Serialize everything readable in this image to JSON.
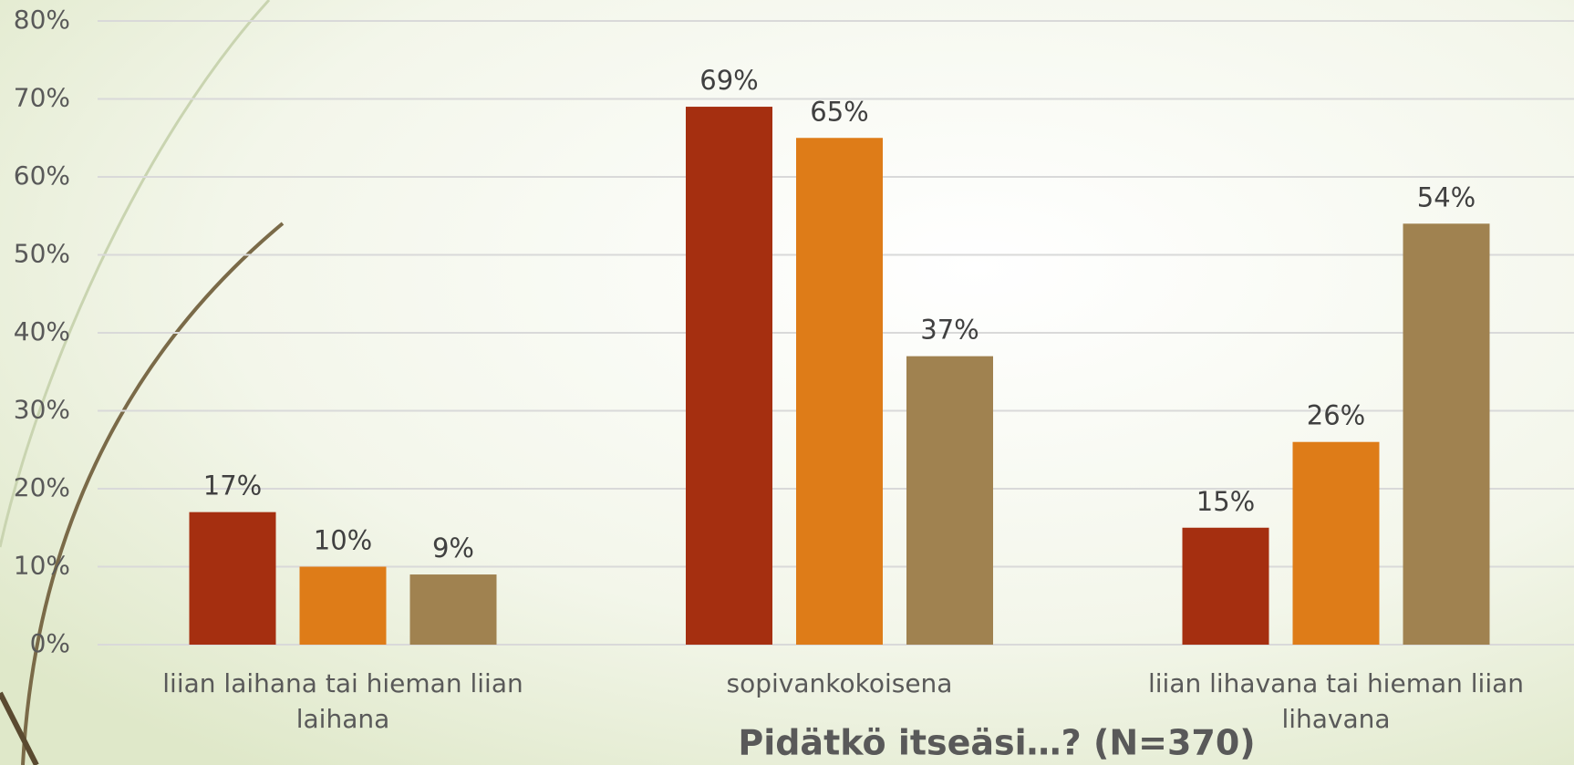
{
  "chart_data": {
    "type": "bar",
    "title": "Pidätkö itseäsi…? (N=370)",
    "categories": [
      "liian laihana tai hieman liian laihana",
      "sopivankokoisena",
      "liian lihavana tai hieman liian lihavana"
    ],
    "series": [
      {
        "color": "#a52f10",
        "values": [
          17,
          69,
          15
        ],
        "value_labels": [
          "17%",
          "69%",
          "15%"
        ]
      },
      {
        "color": "#de7c18",
        "values": [
          10,
          65,
          26
        ],
        "value_labels": [
          "10%",
          "65%",
          "26%"
        ]
      },
      {
        "color": "#a08250",
        "values": [
          9,
          37,
          54
        ],
        "value_labels": [
          "9%",
          "37%",
          "54%"
        ]
      }
    ],
    "ylim": [
      0,
      80
    ],
    "yticks": [
      {
        "value": 0,
        "label": "0%"
      },
      {
        "value": 10,
        "label": "10%"
      },
      {
        "value": 20,
        "label": "20%"
      },
      {
        "value": 30,
        "label": "30%"
      },
      {
        "value": 40,
        "label": "40%"
      },
      {
        "value": 50,
        "label": "50%"
      },
      {
        "value": 60,
        "label": "60%"
      },
      {
        "value": 70,
        "label": "70%"
      },
      {
        "value": 80,
        "label": "80%"
      }
    ],
    "grid": true
  }
}
